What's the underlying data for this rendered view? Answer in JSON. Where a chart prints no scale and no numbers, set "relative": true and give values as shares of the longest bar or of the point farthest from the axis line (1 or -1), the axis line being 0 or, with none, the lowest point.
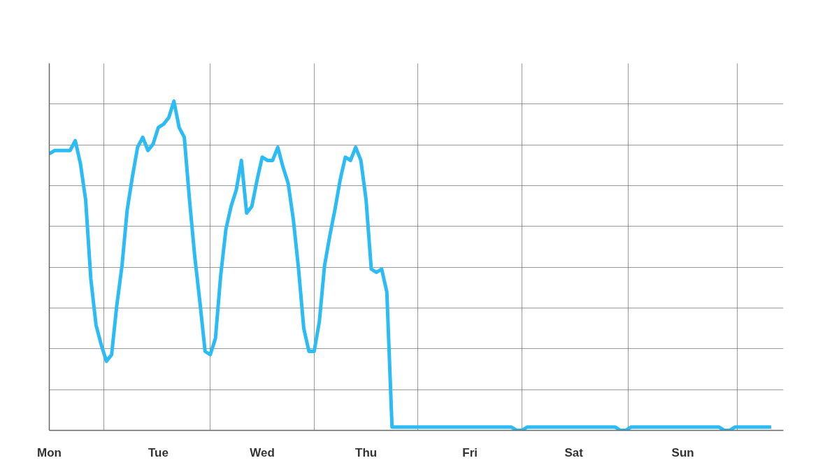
{
  "chart_data": {
    "type": "line",
    "relative": true,
    "grid": true,
    "marker": "none",
    "line_style": "solid",
    "categories": [
      "Mon",
      null,
      null,
      null,
      null,
      null,
      null,
      null,
      null,
      null,
      null,
      null,
      null,
      null,
      null,
      null,
      null,
      null,
      null,
      null,
      null,
      "Tue",
      null,
      null,
      null,
      null,
      null,
      null,
      null,
      null,
      null,
      null,
      null,
      null,
      null,
      null,
      null,
      null,
      null,
      null,
      null,
      "Wed",
      null,
      null,
      null,
      null,
      null,
      null,
      null,
      null,
      null,
      null,
      null,
      null,
      null,
      null,
      null,
      null,
      null,
      null,
      null,
      "Thu",
      null,
      null,
      null,
      null,
      null,
      null,
      null,
      null,
      null,
      null,
      null,
      null,
      null,
      null,
      null,
      null,
      null,
      null,
      null,
      "Fri",
      null,
      null,
      null,
      null,
      null,
      null,
      null,
      null,
      null,
      null,
      null,
      null,
      null,
      null,
      null,
      null,
      null,
      null,
      null,
      "Sat",
      null,
      null,
      null,
      null,
      null,
      null,
      null,
      null,
      null,
      null,
      null,
      null,
      null,
      null,
      null,
      null,
      null,
      null,
      null,
      null,
      "Sun",
      null,
      null,
      null,
      null,
      null,
      null,
      null,
      null,
      null,
      null,
      null,
      null,
      null,
      null,
      null,
      null,
      null
    ],
    "series": [
      {
        "color": "#2bbcf5",
        "values": [
          0.84,
          0.85,
          0.85,
          0.85,
          0.85,
          0.88,
          0.81,
          0.7,
          0.46,
          0.32,
          0.26,
          0.21,
          0.23,
          0.38,
          0.5,
          0.67,
          0.77,
          0.86,
          0.89,
          0.85,
          0.87,
          0.92,
          0.93,
          0.95,
          1.0,
          0.92,
          0.89,
          0.7,
          0.53,
          0.39,
          0.24,
          0.23,
          0.28,
          0.47,
          0.61,
          0.68,
          0.73,
          0.82,
          0.66,
          0.68,
          0.76,
          0.83,
          0.82,
          0.82,
          0.86,
          0.8,
          0.75,
          0.64,
          0.49,
          0.31,
          0.24,
          0.24,
          0.33,
          0.5,
          0.59,
          0.67,
          0.76,
          0.83,
          0.82,
          0.86,
          0.82,
          0.7,
          0.49,
          0.48,
          0.49,
          0.42,
          0.01,
          0.01,
          0.01,
          0.01,
          0.01,
          0.01,
          0.01,
          0.01,
          0.01,
          0.01,
          0.01,
          0.01,
          0.01,
          0.01,
          0.01,
          0.01,
          0.01,
          0.01,
          0.01,
          0.01,
          0.01,
          0.01,
          0.01,
          0.01,
          0,
          0,
          0.01,
          0.01,
          0.01,
          0.01,
          0.01,
          0.01,
          0.01,
          0.01,
          0.01,
          0.01,
          0.01,
          0.01,
          0.01,
          0.01,
          0.01,
          0.01,
          0.01,
          0.01,
          0,
          0,
          0.01,
          0.01,
          0.01,
          0.01,
          0.01,
          0.01,
          0.01,
          0.01,
          0.01,
          0.01,
          0.01,
          0.01,
          0.01,
          0.01,
          0.01,
          0.01,
          0.01,
          0.01,
          0,
          0,
          0.01,
          0.01,
          0.01,
          0.01,
          0.01,
          0.01,
          0.01,
          0.01
        ]
      }
    ]
  }
}
